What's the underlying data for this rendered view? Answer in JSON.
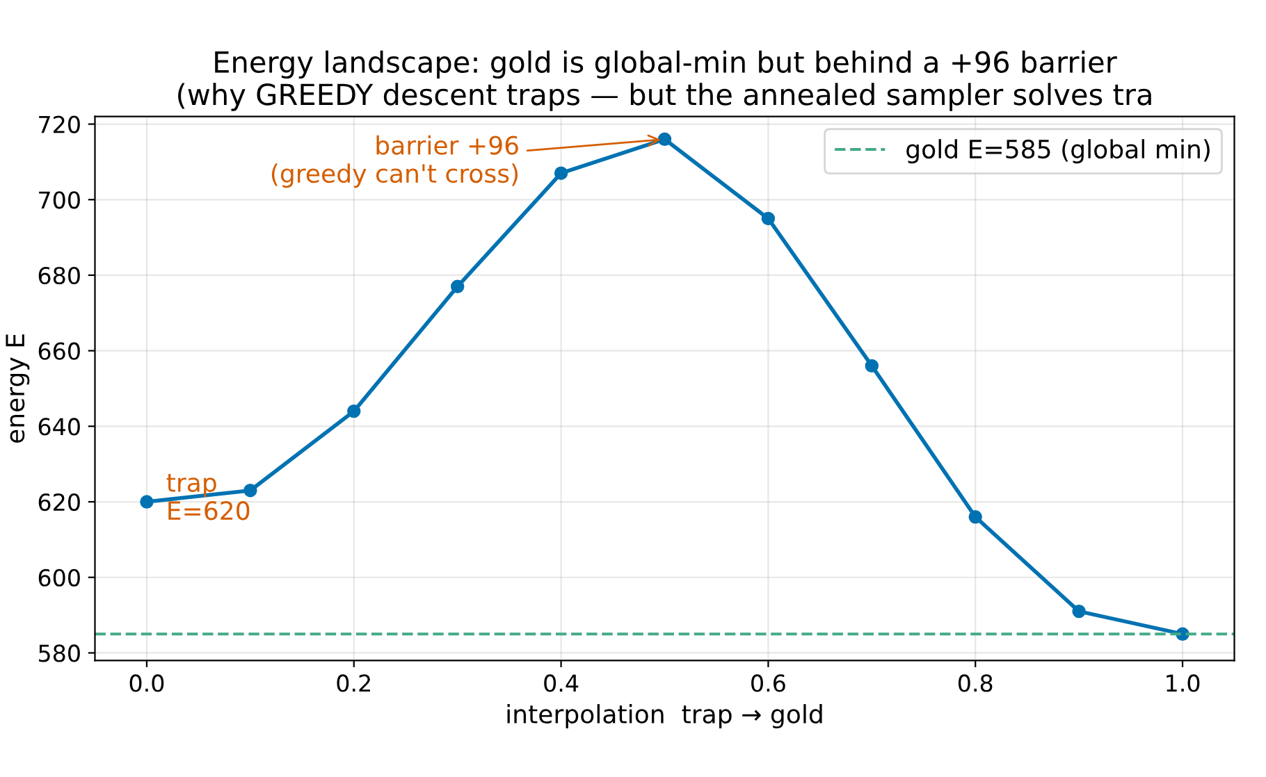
{
  "chart_data": {
    "type": "line",
    "title": "Energy landscape: gold is global-min but behind a +96 barrier\n(why GREEDY descent traps — but the annealed sampler solves tra",
    "xlabel": "interpolation  trap → gold",
    "ylabel": "energy E",
    "x": [
      0.0,
      0.1,
      0.2,
      0.3,
      0.4,
      0.5,
      0.6,
      0.7,
      0.8,
      0.9,
      1.0
    ],
    "series": [
      {
        "color": "#0072b2",
        "values": [
          620,
          623,
          644,
          677,
          707,
          716,
          695,
          656,
          616,
          591,
          585
        ]
      }
    ],
    "ref_lines": [
      {
        "axis": "y",
        "value": 585,
        "label": "gold E=585 (global min)",
        "color": "#44aa88",
        "line_style": "dashed"
      }
    ],
    "annotations": [
      {
        "text": "trap\nE=620",
        "x": 0.0,
        "y": 620
      },
      {
        "text": "barrier +96\n(greedy can't cross)",
        "x": 0.5,
        "y": 716
      }
    ],
    "xlim": [
      -0.05,
      1.05
    ],
    "xticks": [
      {
        "value": 0,
        "label": "0.0"
      },
      0.2,
      0.4,
      0.6,
      0.8,
      {
        "value": 1,
        "label": "1.0"
      }
    ],
    "ylim": [
      578,
      722
    ],
    "yticks": [
      580,
      600,
      620,
      640,
      660,
      680,
      700,
      720
    ],
    "grid": true,
    "legend": "top right",
    "marker": "circle",
    "line_style": "solid"
  }
}
